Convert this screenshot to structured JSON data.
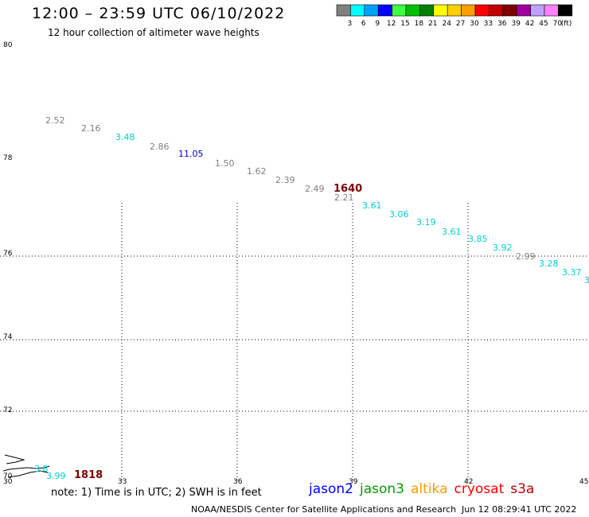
{
  "header": {
    "title": "12:00 – 23:59 UTC 06/10/2022",
    "subtitle": "12 hour collection of altimeter wave heights"
  },
  "colorbar": {
    "bins": [
      {
        "label": "3",
        "color": "#808080"
      },
      {
        "label": "6",
        "color": "#00ffff"
      },
      {
        "label": "9",
        "color": "#00a0ff"
      },
      {
        "label": "12",
        "color": "#0000ff"
      },
      {
        "label": "15",
        "color": "#40ff40"
      },
      {
        "label": "18",
        "color": "#00c000"
      },
      {
        "label": "21",
        "color": "#008000"
      },
      {
        "label": "24",
        "color": "#ffff00"
      },
      {
        "label": "27",
        "color": "#ffd000"
      },
      {
        "label": "30",
        "color": "#ffa000"
      },
      {
        "label": "33",
        "color": "#ff0000"
      },
      {
        "label": "36",
        "color": "#c00000"
      },
      {
        "label": "39",
        "color": "#800000"
      },
      {
        "label": "42",
        "color": "#a000a0"
      },
      {
        "label": "45",
        "color": "#c0a0ff"
      },
      {
        "label": "70",
        "color": "#ff80ff"
      },
      {
        "label": "",
        "color": "#000000"
      }
    ],
    "unit": "(ft)"
  },
  "map": {
    "lat_labels": [
      "80",
      "78",
      "76",
      "74",
      "72",
      "70"
    ],
    "lon_labels": [
      "30",
      "33",
      "36",
      "39",
      "42",
      "45"
    ],
    "readings": [
      {
        "text": "2.52",
        "color": "#808080"
      },
      {
        "text": "2.16",
        "color": "#808080"
      },
      {
        "text": "3.48",
        "color": "#00d0d0"
      },
      {
        "text": "2.86",
        "color": "#808080"
      },
      {
        "text": "11.05",
        "color": "#0000c0"
      },
      {
        "text": "1.50",
        "color": "#808080"
      },
      {
        "text": "1.62",
        "color": "#808080"
      },
      {
        "text": "2.39",
        "color": "#808080"
      },
      {
        "text": "2.49",
        "color": "#808080"
      },
      {
        "text": "2.21",
        "color": "#808080"
      },
      {
        "text": "1640",
        "color": "#800000"
      },
      {
        "text": "3.61",
        "color": "#00d0d0"
      },
      {
        "text": "3.06",
        "color": "#00d0d0"
      },
      {
        "text": "3.19",
        "color": "#00d0d0"
      },
      {
        "text": "3.61",
        "color": "#00d0d0"
      },
      {
        "text": "3.85",
        "color": "#00d0d0"
      },
      {
        "text": "3.92",
        "color": "#00d0d0"
      },
      {
        "text": "2.99",
        "color": "#808080"
      },
      {
        "text": "3.28",
        "color": "#00d0d0"
      },
      {
        "text": "3.37",
        "color": "#00d0d0"
      },
      {
        "text": "3",
        "color": "#00d0d0"
      },
      {
        "text": "3.99",
        "color": "#00d0d0"
      },
      {
        "text": "1818",
        "color": "#800000"
      },
      {
        "text": "3.8",
        "color": "#00d0d0"
      }
    ]
  },
  "legend": {
    "note": "note: 1) Time is in UTC; 2) SWH is in feet",
    "missions": [
      {
        "name": "jason2",
        "color": "#0000ff"
      },
      {
        "name": "jason3",
        "color": "#00a000"
      },
      {
        "name": "altika",
        "color": "#ff9900"
      },
      {
        "name": "cryosat",
        "color": "#ff0000"
      },
      {
        "name": "s3a",
        "color": "#c00000"
      }
    ]
  },
  "footer": {
    "credit": "NOAA/NESDIS Center for Satellite Applications and Research",
    "timestamp": "Jun 12 08:29:41 UTC 2022"
  }
}
